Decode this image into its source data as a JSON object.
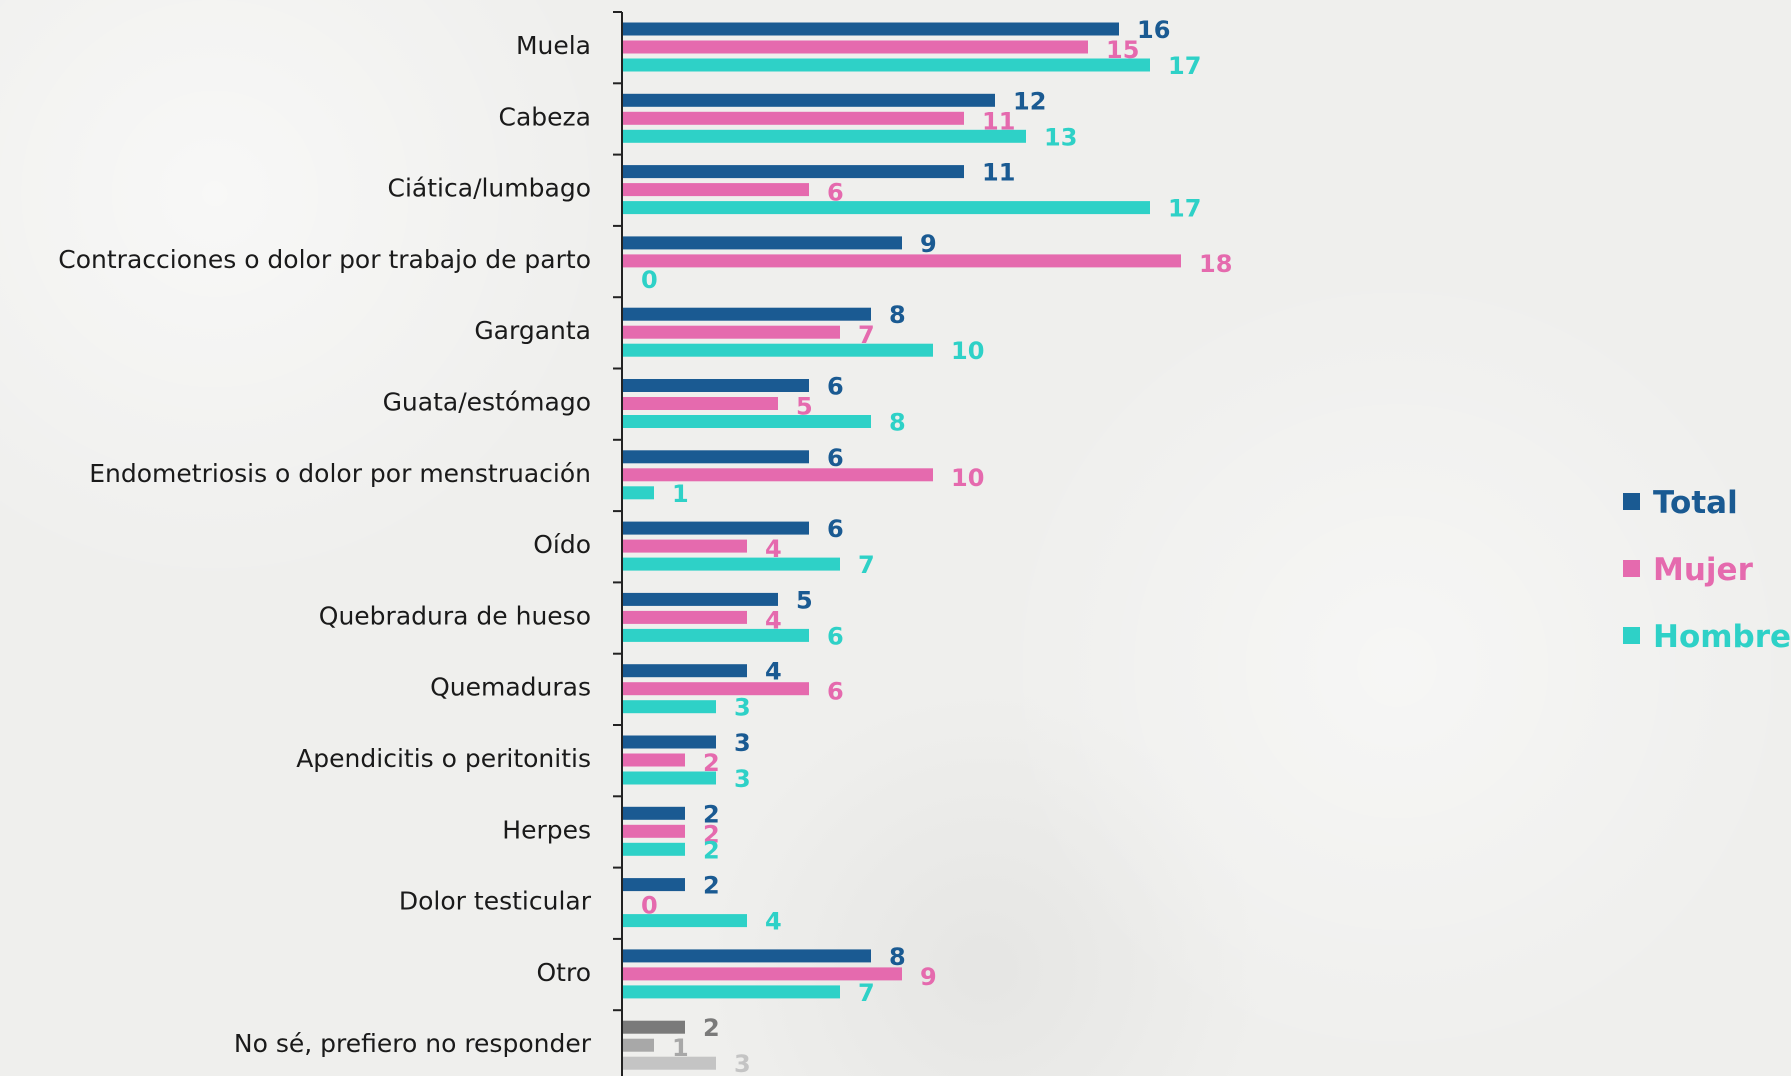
{
  "chart_data": {
    "type": "bar",
    "orientation": "horizontal",
    "title": "",
    "xlabel": "",
    "ylabel": "",
    "grid": false,
    "legend_position": "right",
    "categories": [
      "Muela",
      "Cabeza",
      "Ciática/lumbago",
      "Contracciones o dolor por trabajo de parto",
      "Garganta",
      "Guata/estómago",
      "Endometriosis o dolor por menstruación",
      "Oído",
      "Quebradura de hueso",
      "Quemaduras",
      "Apendicitis o peritonitis",
      "Herpes",
      "Dolor testicular",
      "Otro",
      "No sé, prefiero no responder"
    ],
    "series": [
      {
        "name": "Total",
        "color": "#1a5a92",
        "values": [
          16,
          12,
          11,
          9,
          8,
          6,
          6,
          6,
          5,
          4,
          3,
          2,
          2,
          8,
          2
        ]
      },
      {
        "name": "Mujer",
        "color": "#e56aae",
        "values": [
          15,
          11,
          6,
          18,
          7,
          5,
          10,
          4,
          4,
          6,
          2,
          2,
          0,
          9,
          1
        ]
      },
      {
        "name": "Hombre",
        "color": "#2ed1c7",
        "values": [
          17,
          13,
          17,
          0,
          10,
          8,
          1,
          7,
          6,
          3,
          3,
          2,
          4,
          7,
          3
        ]
      }
    ],
    "special_colors": {
      "last_category": [
        "#7a7a7a",
        "#a8a8a8",
        "#c4c4c4"
      ]
    },
    "xlim": [
      0,
      18
    ]
  }
}
